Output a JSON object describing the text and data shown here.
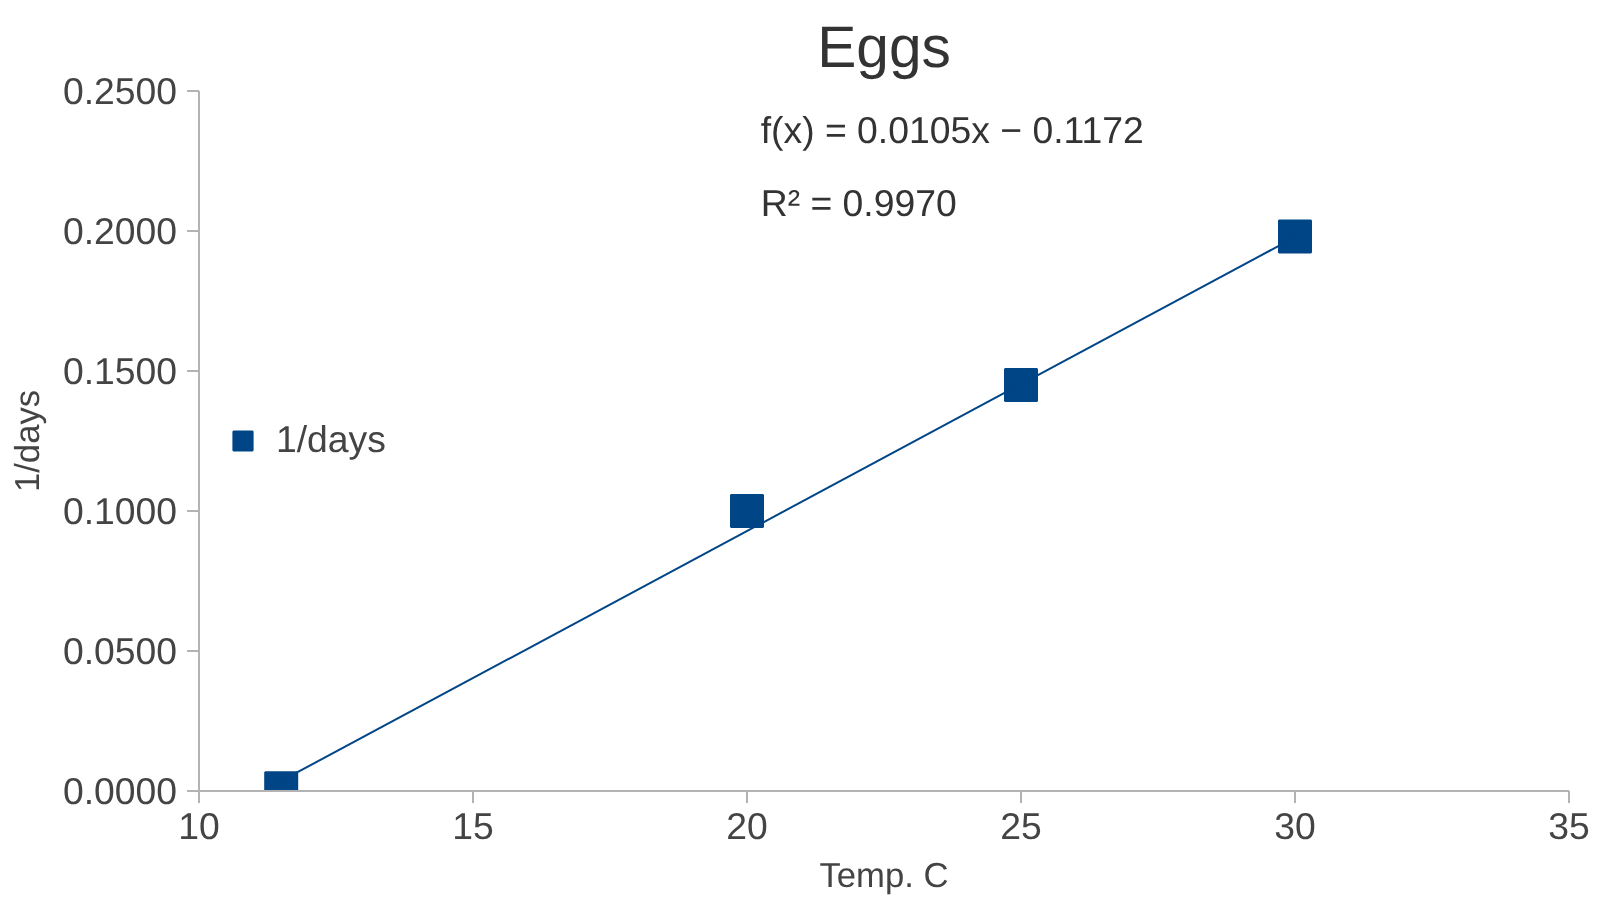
{
  "chart_data": {
    "type": "scatter",
    "title": "Eggs",
    "xlabel": "Temp. C",
    "ylabel": "1/days",
    "xlim": [
      10,
      35
    ],
    "xticks": [
      10,
      15,
      20,
      25,
      30,
      35
    ],
    "ylim": [
      0,
      0.25
    ],
    "yticks": [
      {
        "value": 0,
        "label": "0.0000"
      },
      {
        "value": 0.05,
        "label": "0.0500"
      },
      {
        "value": 0.1,
        "label": "0.1000"
      },
      {
        "value": 0.15,
        "label": "0.1500"
      },
      {
        "value": 0.2,
        "label": "0.2000"
      },
      {
        "value": 0.25,
        "label": "0.2500"
      }
    ],
    "series": [
      {
        "name": "1/days",
        "color": "#004586",
        "x": [
          11.5,
          20,
          25,
          30
        ],
        "values": [
          0.001,
          0.1,
          0.145,
          0.198
        ]
      },
      {
        "type": "line",
        "marker": "none",
        "color": "#004586",
        "x": [
          11.5,
          30
        ],
        "values": [
          0.0036,
          0.1978
        ]
      }
    ],
    "marker": "square",
    "grid": false,
    "legend": "left",
    "annotations": [
      "f(x) = 0.0105x − 0.1172",
      "R² = 0.9970"
    ]
  }
}
